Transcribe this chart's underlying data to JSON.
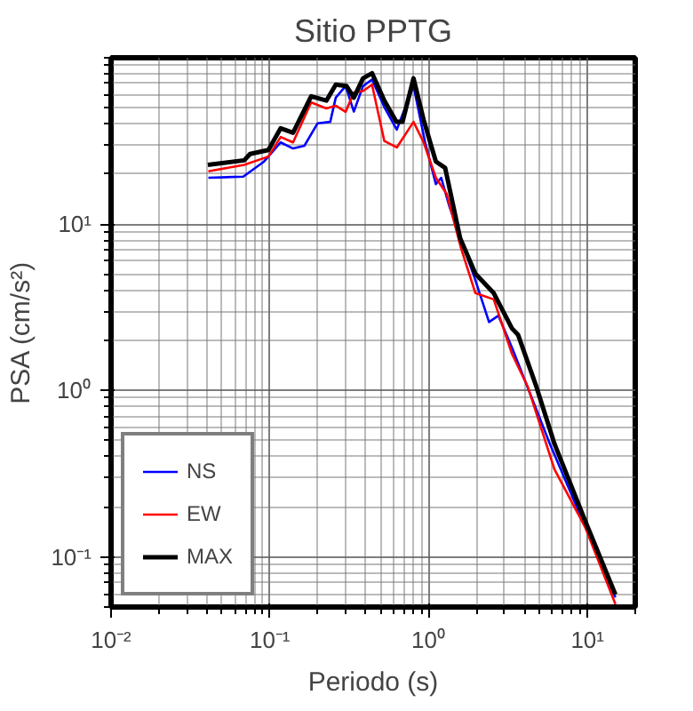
{
  "chart_data": {
    "type": "line",
    "title": "Sitio PPTG",
    "xlabel": "Periodo (s)",
    "ylabel": "PSA (cm/s²)",
    "log": "xy",
    "grid": true,
    "legend": "bottom left",
    "marker": "none",
    "line_style": "solid",
    "xlim": [
      0.01,
      20
    ],
    "ylim": [
      0.05,
      100
    ],
    "xticks": [
      {
        "value": 0.01,
        "label": "10⁻²"
      },
      {
        "value": 0.1,
        "label": "10⁻¹"
      },
      {
        "value": 1,
        "label": "10⁰"
      },
      {
        "value": 10,
        "label": "10¹"
      }
    ],
    "yticks": [
      {
        "value": 0.1,
        "label": "10⁻¹"
      },
      {
        "value": 1,
        "label": "10⁰"
      },
      {
        "value": 10,
        "label": "10¹"
      }
    ],
    "series": [
      {
        "name": "NS",
        "color": "#0000ff",
        "x": [
          0.041,
          0.068,
          0.092,
          0.117,
          0.14,
          0.165,
          0.2,
          0.24,
          0.26,
          0.3,
          0.338,
          0.386,
          0.44,
          0.526,
          0.63,
          0.803,
          0.95,
          1.11,
          1.2,
          1.35,
          1.97,
          2.4,
          2.75,
          3.35,
          5.8,
          15.0
        ],
        "values": [
          19,
          19.3,
          23.8,
          31,
          28.5,
          29.6,
          40.4,
          41.2,
          57.6,
          67.6,
          47.5,
          67.6,
          74,
          50.5,
          37,
          67.6,
          31,
          17.4,
          19,
          12.8,
          4.6,
          2.58,
          2.82,
          1.81,
          0.478,
          0.057
        ]
      },
      {
        "name": "EW",
        "color": "#ff0000",
        "x": [
          0.041,
          0.069,
          0.098,
          0.117,
          0.14,
          0.182,
          0.227,
          0.26,
          0.3,
          0.338,
          0.386,
          0.44,
          0.526,
          0.63,
          0.803,
          0.93,
          1.11,
          1.3,
          1.6,
          1.97,
          2.57,
          3.35,
          4.2,
          6.2,
          9.67,
          15.0
        ],
        "values": [
          20.8,
          22.7,
          25.5,
          33.4,
          31,
          53.9,
          49.6,
          51.5,
          47.3,
          61.9,
          63,
          68.9,
          31.6,
          28.9,
          41.2,
          31,
          19,
          15.2,
          7.16,
          3.85,
          3.53,
          1.66,
          1.06,
          0.336,
          0.151,
          0.052
        ]
      },
      {
        "name": "MAX",
        "color": "#000000",
        "x": [
          0.0407,
          0.069,
          0.075,
          0.098,
          0.117,
          0.14,
          0.182,
          0.227,
          0.26,
          0.304,
          0.338,
          0.386,
          0.44,
          0.526,
          0.626,
          0.685,
          0.803,
          0.93,
          1.11,
          1.27,
          1.58,
          1.97,
          2.57,
          3.35,
          3.66,
          4.76,
          6.2,
          9.67,
          15.0
        ],
        "values": [
          22.7,
          24.2,
          26.4,
          27.9,
          37.7,
          35.4,
          58.7,
          55.3,
          68.9,
          67.6,
          57.6,
          75.3,
          80.8,
          55.3,
          41.2,
          41.2,
          75.3,
          42.3,
          23.8,
          21.8,
          8.2,
          5.03,
          3.85,
          2.36,
          2.16,
          1.06,
          0.478,
          0.165,
          0.0595
        ]
      }
    ]
  }
}
